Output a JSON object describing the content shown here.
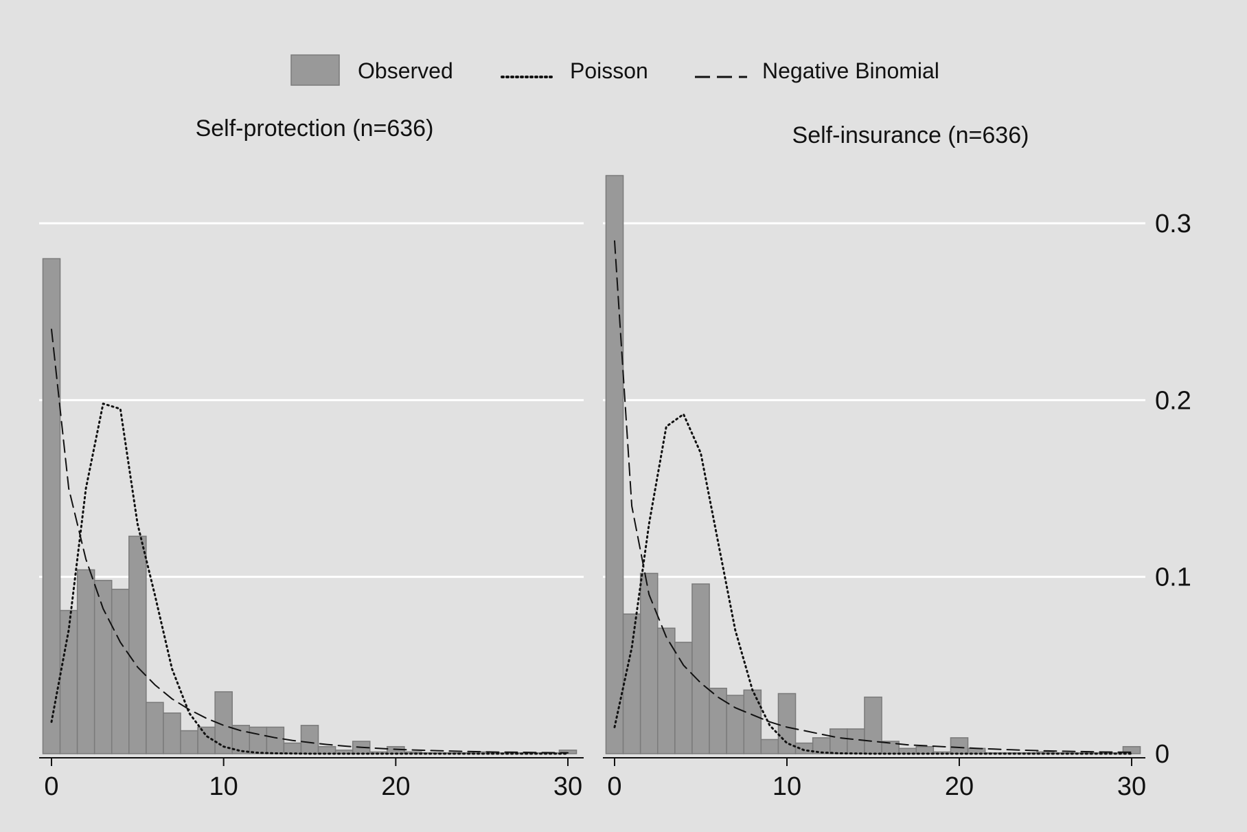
{
  "legend": {
    "items": [
      {
        "label": "Observed",
        "style": "bar",
        "color": "#999999"
      },
      {
        "label": "Poisson",
        "style": "dotted",
        "color": "#111111"
      },
      {
        "label": "Negative Binomial",
        "style": "dashed",
        "color": "#111111"
      }
    ]
  },
  "colors": {
    "background": "#e1e1e1",
    "bar_fill": "#999999",
    "bar_stroke": "#7a7a7a",
    "grid": "#ffffff",
    "line": "#111111"
  },
  "chart_data": [
    {
      "type": "bar",
      "title": "Self-protection (n=636)",
      "xlabel": "",
      "ylabel": "",
      "xlim": [
        0,
        30
      ],
      "ylim": [
        0,
        0.3
      ],
      "xticks": [
        "0",
        "10",
        "20",
        "30"
      ],
      "yticks": [],
      "grid": true,
      "x": [
        0,
        1,
        2,
        3,
        4,
        5,
        6,
        7,
        8,
        9,
        10,
        11,
        12,
        13,
        14,
        15,
        16,
        17,
        18,
        19,
        20,
        21,
        22,
        23,
        24,
        25,
        26,
        27,
        28,
        29,
        30
      ],
      "series": [
        {
          "name": "Observed",
          "values": [
            0.28,
            0.081,
            0.104,
            0.098,
            0.093,
            0.123,
            0.029,
            0.023,
            0.013,
            0.015,
            0.035,
            0.016,
            0.015,
            0.015,
            0.006,
            0.016,
            0.004,
            0.002,
            0.007,
            0.001,
            0.004,
            0.001,
            0.0005,
            0.0005,
            0.0005,
            0.001,
            0.0005,
            0.0005,
            0.0005,
            0.0005,
            0.002
          ]
        },
        {
          "name": "Poisson",
          "values": [
            0.018,
            0.07,
            0.15,
            0.198,
            0.195,
            0.13,
            0.09,
            0.048,
            0.023,
            0.01,
            0.004,
            0.0015,
            0.0005,
            0.0002,
            0.0001,
            0.0,
            0.0,
            0.0,
            0.0,
            0.0,
            0.0,
            0.0,
            0.0,
            0.0,
            0.0,
            0.0,
            0.0,
            0.0,
            0.0,
            0.0,
            0.0
          ]
        },
        {
          "name": "Negative Binomial",
          "values": [
            0.24,
            0.15,
            0.11,
            0.082,
            0.063,
            0.049,
            0.039,
            0.031,
            0.025,
            0.02,
            0.016,
            0.013,
            0.011,
            0.009,
            0.0075,
            0.0063,
            0.0052,
            0.0043,
            0.0036,
            0.003,
            0.0025,
            0.0021,
            0.0018,
            0.0015,
            0.0013,
            0.0011,
            0.0009,
            0.0008,
            0.0007,
            0.0006,
            0.0005
          ]
        }
      ]
    },
    {
      "type": "bar",
      "title": "Self-insurance (n=636)",
      "xlabel": "",
      "ylabel": "",
      "xlim": [
        0,
        30
      ],
      "ylim": [
        0,
        0.3
      ],
      "xticks": [
        "0",
        "10",
        "20",
        "30"
      ],
      "yticks": [
        "0",
        "0.1",
        "0.2",
        "0.3"
      ],
      "grid": true,
      "x": [
        0,
        1,
        2,
        3,
        4,
        5,
        6,
        7,
        8,
        9,
        10,
        11,
        12,
        13,
        14,
        15,
        16,
        17,
        18,
        19,
        20,
        21,
        22,
        23,
        24,
        25,
        26,
        27,
        28,
        29,
        30
      ],
      "series": [
        {
          "name": "Observed",
          "values": [
            0.327,
            0.079,
            0.102,
            0.071,
            0.063,
            0.096,
            0.037,
            0.033,
            0.036,
            0.008,
            0.034,
            0.006,
            0.009,
            0.014,
            0.014,
            0.032,
            0.007,
            0.003,
            0.004,
            0.001,
            0.009,
            0.003,
            0.0005,
            0.0005,
            0.0005,
            0.001,
            0.0005,
            0.0005,
            0.0005,
            0.0005,
            0.004
          ]
        },
        {
          "name": "Poisson",
          "values": [
            0.015,
            0.06,
            0.13,
            0.185,
            0.192,
            0.17,
            0.12,
            0.07,
            0.036,
            0.016,
            0.006,
            0.002,
            0.0007,
            0.0002,
            0.0001,
            0.0,
            0.0,
            0.0,
            0.0,
            0.0,
            0.0,
            0.0,
            0.0,
            0.0,
            0.0,
            0.0,
            0.0,
            0.0,
            0.0,
            0.0,
            0.0
          ]
        },
        {
          "name": "Negative Binomial",
          "values": [
            0.29,
            0.14,
            0.09,
            0.066,
            0.05,
            0.04,
            0.032,
            0.026,
            0.022,
            0.018,
            0.015,
            0.013,
            0.011,
            0.009,
            0.008,
            0.007,
            0.006,
            0.005,
            0.0045,
            0.004,
            0.0035,
            0.003,
            0.0026,
            0.0022,
            0.0019,
            0.0016,
            0.0014,
            0.0012,
            0.001,
            0.0009,
            0.0008
          ]
        }
      ]
    }
  ]
}
